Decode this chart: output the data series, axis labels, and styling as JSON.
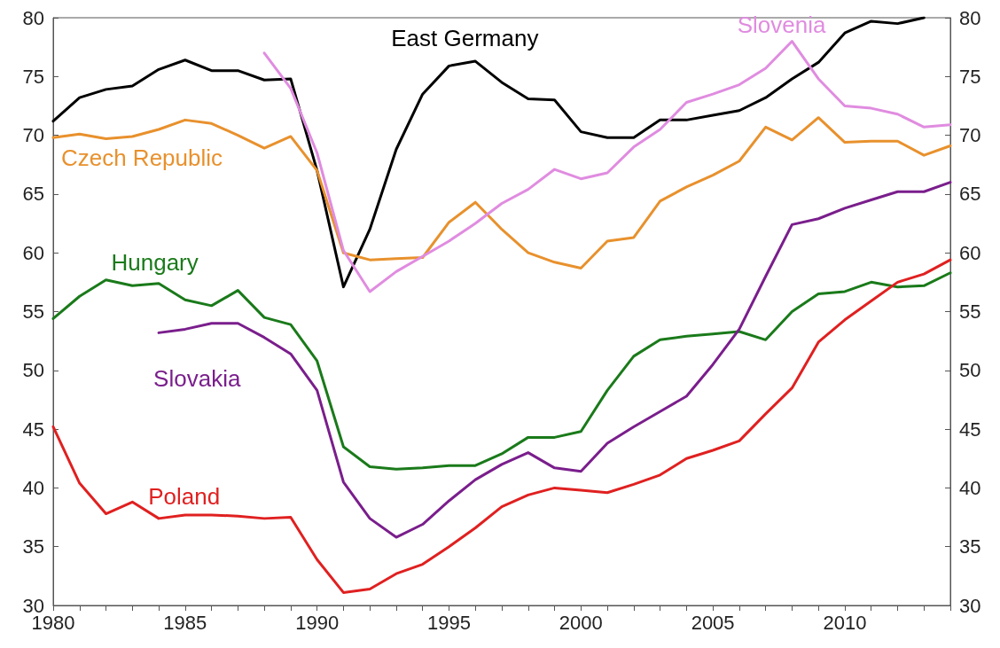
{
  "chart_data": {
    "type": "line",
    "xlim": [
      1980,
      2014
    ],
    "xticks": [
      1980,
      {
        "value": 1981,
        "label": null
      },
      {
        "value": 1982,
        "label": null
      },
      {
        "value": 1983,
        "label": null
      },
      {
        "value": 1984,
        "label": null
      },
      1985,
      {
        "value": 1986,
        "label": null
      },
      {
        "value": 1987,
        "label": null
      },
      {
        "value": 1988,
        "label": null
      },
      {
        "value": 1989,
        "label": null
      },
      1990,
      {
        "value": 1991,
        "label": null
      },
      {
        "value": 1992,
        "label": null
      },
      {
        "value": 1993,
        "label": null
      },
      {
        "value": 1994,
        "label": null
      },
      1995,
      {
        "value": 1996,
        "label": null
      },
      {
        "value": 1997,
        "label": null
      },
      {
        "value": 1998,
        "label": null
      },
      {
        "value": 1999,
        "label": null
      },
      2000,
      {
        "value": 2001,
        "label": null
      },
      {
        "value": 2002,
        "label": null
      },
      {
        "value": 2003,
        "label": null
      },
      {
        "value": 2004,
        "label": null
      },
      2005,
      {
        "value": 2006,
        "label": null
      },
      {
        "value": 2007,
        "label": null
      },
      {
        "value": 2008,
        "label": null
      },
      {
        "value": 2009,
        "label": null
      },
      2010,
      {
        "value": 2011,
        "label": null
      },
      {
        "value": 2012,
        "label": null
      },
      {
        "value": 2013,
        "label": null
      },
      {
        "value": 2014,
        "label": null
      }
    ],
    "ylim": [
      30,
      80
    ],
    "yticks": [
      30,
      35,
      40,
      45,
      50,
      55,
      60,
      65,
      70,
      75,
      80
    ],
    "y2lim": [
      30,
      80
    ],
    "y2ticks": [
      30,
      35,
      40,
      45,
      50,
      55,
      60,
      65,
      70,
      75,
      80
    ],
    "grid": false,
    "legend": false,
    "marker": "none",
    "line_style": "solid",
    "series": [
      {
        "name": "East Germany",
        "color": "#000000",
        "x": [
          1980,
          1981,
          1982,
          1983,
          1984,
          1985,
          1986,
          1987,
          1988,
          1989,
          1990,
          1991,
          1992,
          1993,
          1994,
          1995,
          1996,
          1997,
          1998,
          1999,
          2000,
          2001,
          2002,
          2003,
          2004,
          2005,
          2006,
          2007,
          2008,
          2009,
          2010,
          2011,
          2012,
          2013
        ],
        "values": [
          71.2,
          73.2,
          73.9,
          74.2,
          75.6,
          76.4,
          75.5,
          75.5,
          74.7,
          74.8,
          67,
          57.1,
          62,
          68.8,
          73.5,
          75.9,
          76.3,
          74.5,
          73.1,
          73,
          70.3,
          69.8,
          69.8,
          71.3,
          71.3,
          71.7,
          72.1,
          73.2,
          74.8,
          76.2,
          78.7,
          79.7,
          79.5,
          80
        ]
      },
      {
        "name": "Czech Republic",
        "color": "#e8912d",
        "x": [
          1980,
          1981,
          1982,
          1983,
          1984,
          1985,
          1986,
          1987,
          1988,
          1989,
          1990,
          1991,
          1992,
          1993,
          1994,
          1995,
          1996,
          1997,
          1998,
          1999,
          2000,
          2001,
          2002,
          2003,
          2004,
          2005,
          2006,
          2007,
          2008,
          2009,
          2010,
          2011,
          2012,
          2013,
          2014
        ],
        "values": [
          69.8,
          70.1,
          69.7,
          69.9,
          70.5,
          71.3,
          71,
          70,
          68.9,
          69.9,
          67,
          60,
          59.4,
          59.5,
          59.6,
          62.6,
          64.3,
          62,
          60,
          59.2,
          58.7,
          61,
          61.3,
          64.4,
          65.6,
          66.6,
          67.8,
          70.7,
          69.6,
          71.5,
          69.4,
          69.5,
          69.5,
          68.3,
          69.1
        ]
      },
      {
        "name": "Slovenia",
        "color": "#e08ce0",
        "x": [
          1988,
          1989,
          1990,
          1991,
          1992,
          1993,
          1994,
          1995,
          1996,
          1997,
          1998,
          1999,
          2000,
          2001,
          2002,
          2003,
          2004,
          2005,
          2006,
          2007,
          2008,
          2009,
          2010,
          2011,
          2012,
          2013,
          2014
        ],
        "values": [
          77,
          74,
          68.5,
          60.2,
          56.7,
          58.4,
          59.7,
          61,
          62.5,
          64.2,
          65.4,
          67.1,
          66.3,
          66.8,
          69,
          70.5,
          72.8,
          73.5,
          74.3,
          75.7,
          78,
          74.8,
          72.5,
          72.3,
          71.8,
          70.7,
          70.9
        ]
      },
      {
        "name": "Hungary",
        "color": "#1a7a1a",
        "x": [
          1980,
          1981,
          1982,
          1983,
          1984,
          1985,
          1986,
          1987,
          1988,
          1989,
          1990,
          1991,
          1992,
          1993,
          1994,
          1995,
          1996,
          1997,
          1998,
          1999,
          2000,
          2001,
          2002,
          2003,
          2004,
          2005,
          2006,
          2007,
          2008,
          2009,
          2010,
          2011,
          2012,
          2013,
          2014
        ],
        "values": [
          54.4,
          56.3,
          57.7,
          57.2,
          57.4,
          56,
          55.5,
          56.8,
          54.5,
          53.9,
          50.8,
          43.5,
          41.8,
          41.6,
          41.7,
          41.9,
          41.9,
          42.9,
          44.3,
          44.3,
          44.8,
          48.3,
          51.2,
          52.6,
          52.9,
          53.1,
          53.3,
          52.6,
          55,
          56.5,
          56.7,
          57.5,
          57.1,
          57.2,
          58.3
        ]
      },
      {
        "name": "Slovakia",
        "color": "#7a1e8c",
        "x": [
          1984,
          1985,
          1986,
          1987,
          1988,
          1989,
          1990,
          1991,
          1992,
          1993,
          1994,
          1995,
          1996,
          1997,
          1998,
          1999,
          2000,
          2001,
          2002,
          2003,
          2004,
          2005,
          2006,
          2007,
          2008,
          2009,
          2010,
          2011,
          2012,
          2013,
          2014
        ],
        "values": [
          53.2,
          53.5,
          54,
          54,
          52.8,
          51.4,
          48.3,
          40.5,
          37.4,
          35.8,
          36.9,
          38.9,
          40.7,
          42,
          43,
          41.7,
          41.4,
          43.8,
          45.2,
          46.5,
          47.8,
          50.5,
          53.5,
          58,
          62.4,
          62.9,
          63.8,
          64.5,
          65.2,
          65.2,
          66
        ]
      },
      {
        "name": "Poland",
        "color": "#e02020",
        "x": [
          1980,
          1981,
          1982,
          1983,
          1984,
          1985,
          1986,
          1987,
          1988,
          1989,
          1990,
          1991,
          1992,
          1993,
          1994,
          1995,
          1996,
          1997,
          1998,
          1999,
          2000,
          2001,
          2002,
          2003,
          2004,
          2005,
          2006,
          2007,
          2008,
          2009,
          2010,
          2011,
          2012,
          2013,
          2014
        ],
        "values": [
          45.2,
          40.4,
          37.8,
          38.8,
          37.4,
          37.7,
          37.7,
          37.6,
          37.4,
          37.5,
          33.9,
          31.1,
          31.4,
          32.7,
          33.5,
          35,
          36.6,
          38.4,
          39.4,
          40,
          39.8,
          39.6,
          40.3,
          41.1,
          42.5,
          43.2,
          44,
          46.3,
          48.5,
          52.4,
          54.3,
          55.9,
          57.5,
          58.2,
          59.4
        ]
      }
    ]
  }
}
